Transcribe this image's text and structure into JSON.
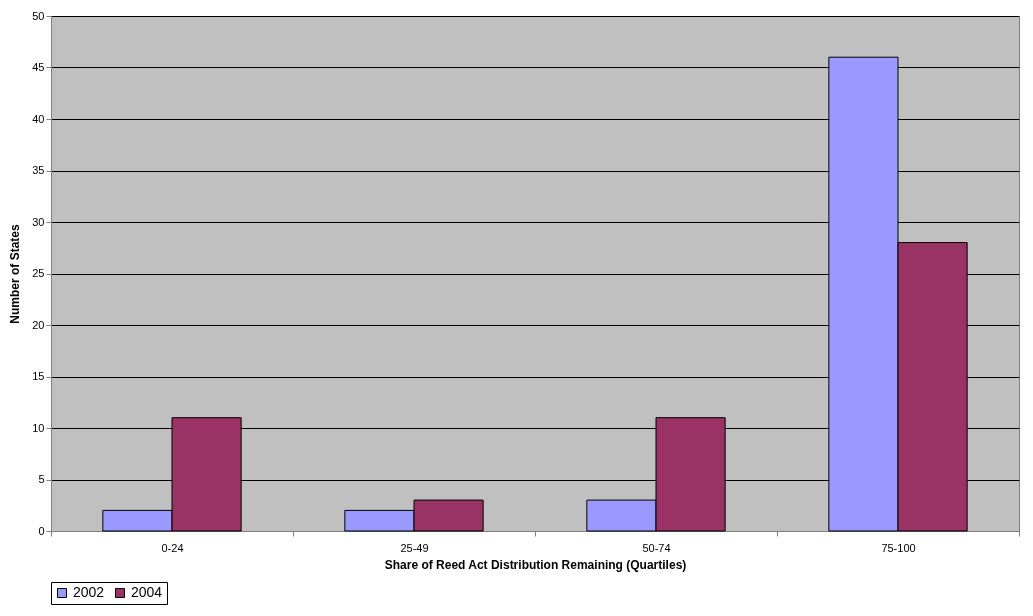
{
  "chart_data": {
    "type": "bar",
    "xlabel": "Share of Reed Act Distribution Remaining (Quartiles)",
    "ylabel": "Number of States",
    "categories": [
      "0-24",
      "25-49",
      "50-74",
      "75-100"
    ],
    "series": [
      {
        "name": "2002",
        "color": "#9999ff",
        "values": [
          2,
          2,
          3,
          46
        ]
      },
      {
        "name": "2004",
        "color": "#993366",
        "values": [
          11,
          3,
          11,
          28
        ]
      }
    ],
    "ylim": [
      0,
      50
    ],
    "yticks": [
      0,
      5,
      10,
      15,
      20,
      25,
      30,
      35,
      40,
      45,
      50
    ],
    "grid": "y",
    "legend": "bottom"
  }
}
